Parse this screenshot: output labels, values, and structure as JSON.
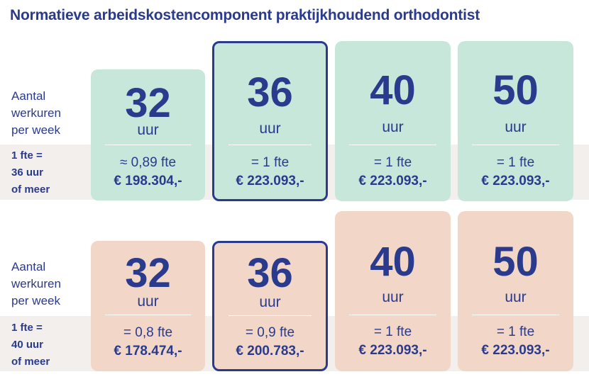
{
  "title": "Normatieve arbeidskostencomponent praktijkhoudend orthodontist",
  "colors": {
    "text": "#2a3a8c",
    "green": "#c7e7da",
    "peach": "#f2d7c8",
    "band": "#f3efec"
  },
  "section1": {
    "hours_label": [
      "Aantal",
      "werkuren",
      "per week"
    ],
    "fte_label": [
      "1 fte =",
      "36 uur",
      "of meer"
    ],
    "cards": [
      {
        "hours": "32",
        "unit": "uur",
        "fte": "≈ 0,89 fte",
        "amount": "€ 198.304,-",
        "highlighted": false
      },
      {
        "hours": "36",
        "unit": "uur",
        "fte": "= 1 fte",
        "amount": "€ 223.093,-",
        "highlighted": true
      },
      {
        "hours": "40",
        "unit": "uur",
        "fte": "= 1 fte",
        "amount": "€ 223.093,-",
        "highlighted": false
      },
      {
        "hours": "50",
        "unit": "uur",
        "fte": "= 1 fte",
        "amount": "€ 223.093,-",
        "highlighted": false
      }
    ]
  },
  "section2": {
    "hours_label": [
      "Aantal",
      "werkuren",
      "per week"
    ],
    "fte_label": [
      "1 fte =",
      "40 uur",
      "of meer"
    ],
    "cards": [
      {
        "hours": "32",
        "unit": "uur",
        "fte": "= 0,8 fte",
        "amount": "€ 178.474,-",
        "highlighted": false
      },
      {
        "hours": "36",
        "unit": "uur",
        "fte": "= 0,9 fte",
        "amount": "€ 200.783,-",
        "highlighted": true
      },
      {
        "hours": "40",
        "unit": "uur",
        "fte": "= 1 fte",
        "amount": "€ 223.093,-",
        "highlighted": false
      },
      {
        "hours": "50",
        "unit": "uur",
        "fte": "= 1 fte",
        "amount": "€ 223.093,-",
        "highlighted": false
      }
    ]
  }
}
